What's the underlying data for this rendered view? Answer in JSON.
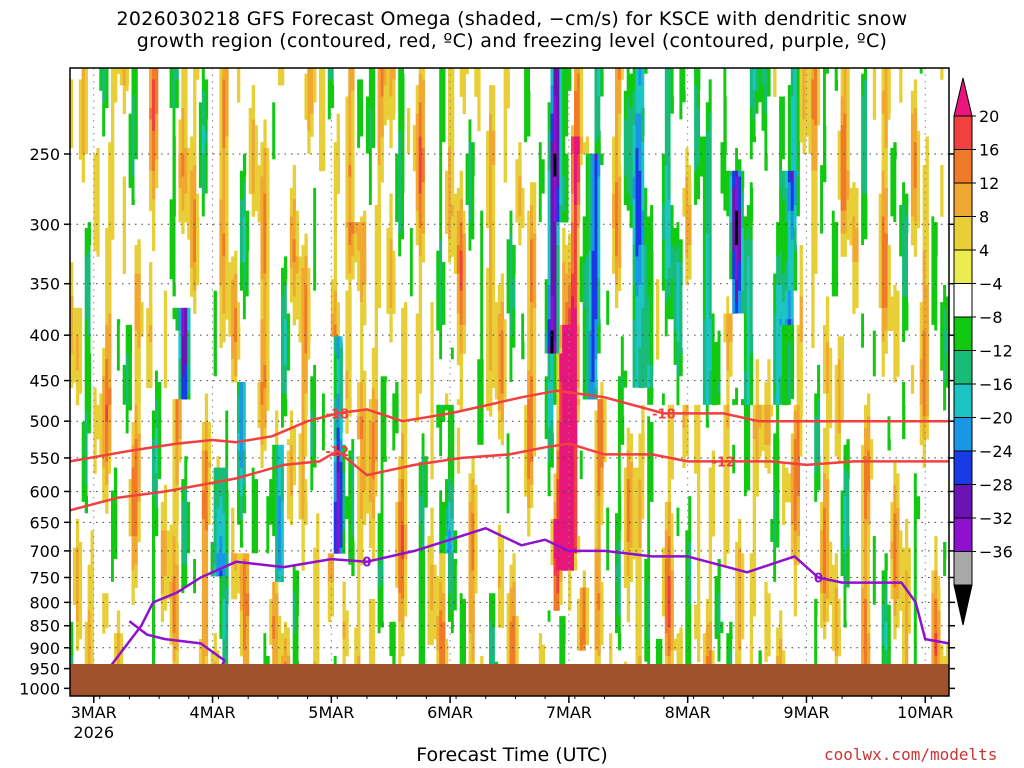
{
  "title_line1": "2026030218 GFS Forecast Omega (shaded, −cm/s) for KSCE with dendritic snow",
  "title_line2": "growth region (contoured, red, ºC) and freezing level (contoured, purple, ºC)",
  "credit": "coolwx.com/modelts",
  "chart_data": {
    "type": "heatmap",
    "xlabel": "Forecast Time (UTC)",
    "x_ticks": [
      "3MAR",
      "4MAR",
      "5MAR",
      "6MAR",
      "7MAR",
      "8MAR",
      "9MAR",
      "10MAR"
    ],
    "x_tick_sublabel": "2026",
    "x_range_days": [
      -0.2,
      7.2
    ],
    "y_ticks": [
      250,
      300,
      350,
      400,
      450,
      500,
      550,
      600,
      650,
      700,
      750,
      800,
      850,
      900,
      950,
      1000
    ],
    "y_range_hpa": [
      200,
      1020
    ],
    "y_scale": "pressure",
    "grid": "dotted",
    "colorbar": {
      "labels": [
        "20",
        "16",
        "12",
        "8",
        "4",
        "−4",
        "−8",
        "−12",
        "−16",
        "−20",
        "−24",
        "−28",
        "−32",
        "−36"
      ],
      "colors": [
        "#e8157a",
        "#f04040",
        "#f07a28",
        "#f0a830",
        "#e8cf38",
        "#ecec50",
        "#ffffff",
        "#12c912",
        "#18bb78",
        "#1cc4c4",
        "#1a96e6",
        "#1a3ae6",
        "#6a14b4",
        "#9010d0",
        "#a8a8a8",
        "#000000"
      ]
    },
    "omega_features": [
      {
        "t": 4.0,
        "p0": 390,
        "p1": 740,
        "v": 20,
        "w": 0.06
      },
      {
        "t": 3.96,
        "p0": 300,
        "p1": 740,
        "v": 12,
        "w": 0.05
      },
      {
        "t": 4.05,
        "p0": 240,
        "p1": 700,
        "v": 12,
        "w": 0.05
      },
      {
        "t": 3.9,
        "p0": 640,
        "p1": 820,
        "v": 12,
        "w": 0.05
      },
      {
        "t": 3.88,
        "p0": 200,
        "p1": 420,
        "v": -20,
        "w": 0.07
      },
      {
        "t": 4.2,
        "p0": 250,
        "p1": 470,
        "v": -16,
        "w": 0.08
      },
      {
        "t": 4.6,
        "p0": 200,
        "p1": 460,
        "v": -12,
        "w": 0.09
      },
      {
        "t": 5.4,
        "p0": 260,
        "p1": 380,
        "v": -16,
        "w": 0.06
      },
      {
        "t": 4.1,
        "p0": 770,
        "p1": 900,
        "v": 8,
        "w": 0.06
      },
      {
        "t": 5.85,
        "p0": 260,
        "p1": 390,
        "v": -12,
        "w": 0.06
      },
      {
        "t": 1.05,
        "p0": 560,
        "p1": 750,
        "v": -16,
        "w": 0.05
      },
      {
        "t": 2.95,
        "p0": 480,
        "p1": 700,
        "v": -12,
        "w": 0.07
      },
      {
        "t": 1.25,
        "p0": 450,
        "p1": 700,
        "v": -12,
        "w": 0.06
      },
      {
        "t": 2.2,
        "p0": 300,
        "p1": 520,
        "v": 8,
        "w": 0.08
      },
      {
        "t": 0.75,
        "p0": 370,
        "p1": 470,
        "v": -24,
        "w": 0.05
      },
      {
        "t": 2.05,
        "p0": 400,
        "p1": 700,
        "v": -24,
        "w": 0.05
      },
      {
        "t": 1.55,
        "p0": 530,
        "p1": 760,
        "v": -16,
        "w": 0.05
      }
    ],
    "contours": [
      {
        "level": "-18",
        "color": "#f04040",
        "t": [
          -0.2,
          0.3,
          0.7,
          1.0,
          1.2,
          1.5,
          1.8,
          2.05,
          2.3,
          2.6,
          3.0,
          3.3,
          3.6,
          3.9,
          4.3,
          4.8,
          5.3,
          5.6,
          6.0,
          6.5,
          7.2
        ],
        "p": [
          555,
          540,
          530,
          525,
          528,
          520,
          500,
          490,
          485,
          500,
          490,
          480,
          470,
          462,
          470,
          490,
          490,
          500,
          500,
          500,
          500
        ]
      },
      {
        "level": "-12",
        "color": "#f04040",
        "t": [
          -0.2,
          0.2,
          0.6,
          0.9,
          1.2,
          1.6,
          1.9,
          2.05,
          2.3,
          2.7,
          3.1,
          3.5,
          3.8,
          4.0,
          4.3,
          4.7,
          5.0,
          5.3,
          5.7,
          6.0,
          6.4,
          6.8,
          7.2
        ],
        "p": [
          630,
          610,
          600,
          590,
          580,
          560,
          555,
          540,
          575,
          560,
          550,
          545,
          535,
          530,
          545,
          545,
          555,
          555,
          555,
          560,
          555,
          555,
          555
        ]
      },
      {
        "level": "0",
        "color": "#9010d0",
        "t": [
          -0.2,
          0.1,
          0.4,
          0.5,
          0.7,
          0.9,
          1.2,
          1.6,
          2.0,
          2.3,
          2.7,
          3.0,
          3.3,
          3.6,
          3.8,
          4.0,
          4.3,
          4.7,
          5.0,
          5.5,
          5.9,
          6.1,
          6.3,
          6.6,
          6.8,
          6.92,
          7.0,
          7.2
        ],
        "p": [
          970,
          960,
          850,
          800,
          780,
          750,
          720,
          730,
          715,
          720,
          700,
          680,
          660,
          690,
          680,
          700,
          700,
          710,
          710,
          740,
          710,
          750,
          760,
          760,
          760,
          800,
          880,
          890
        ]
      },
      {
        "level": "0",
        "color": "#9010d0",
        "t": [
          0.3,
          0.45,
          0.6,
          0.9,
          1.1,
          1.05
        ],
        "p": [
          840,
          870,
          880,
          890,
          930,
          960
        ]
      }
    ]
  }
}
